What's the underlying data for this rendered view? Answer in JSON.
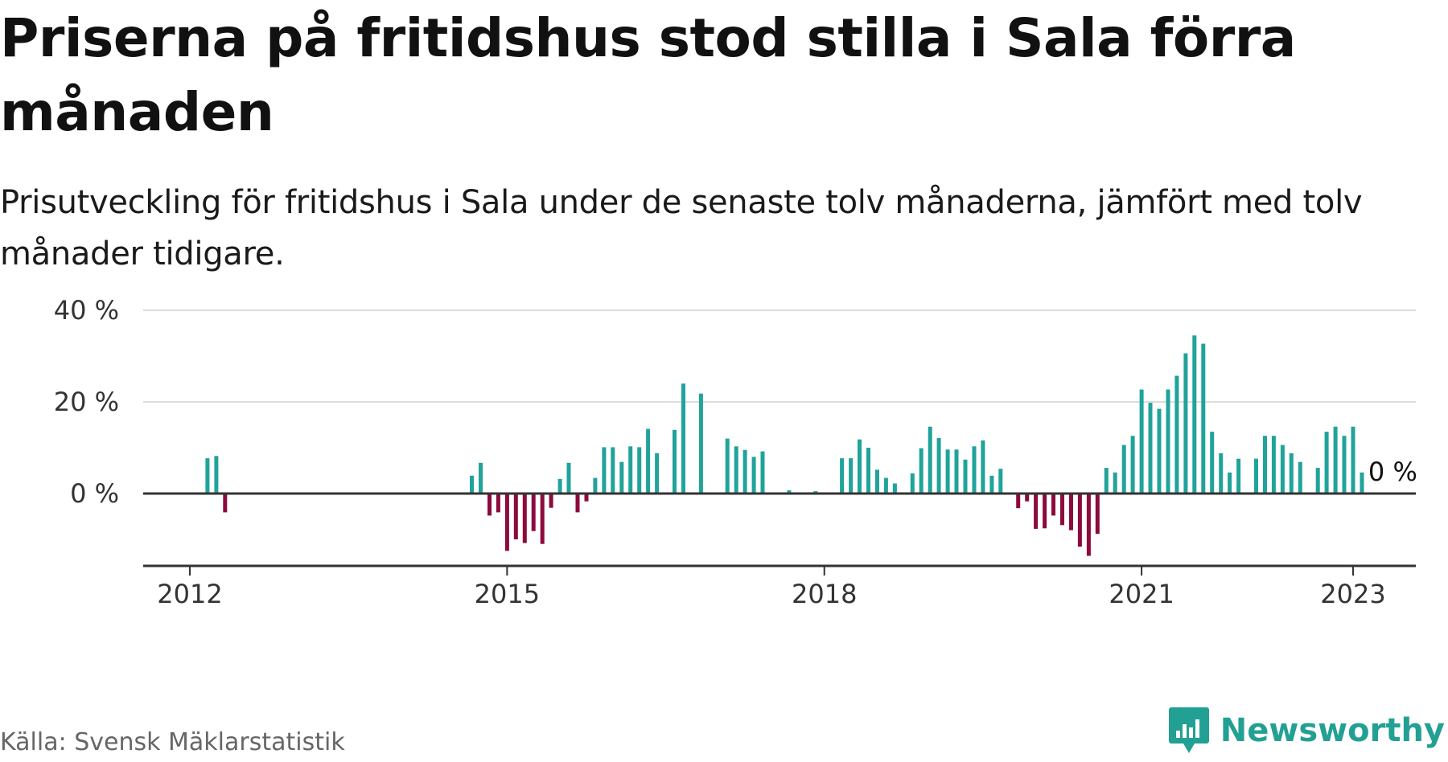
{
  "title": "Priserna på fritidshus stod stilla i Sala förra månaden",
  "subtitle": "Prisutveckling för fritidshus i Sala under de senaste tolv månaderna, jämfört med tolv månader tidigare.",
  "source": "Källa: Svensk Mäklarstatistik",
  "brand": {
    "name": "Newsworthy",
    "icon": "newsworthy-logo-icon"
  },
  "colors": {
    "positive": "#20a39a",
    "negative": "#8c0a3d",
    "grid": "#dddddd",
    "axis": "#333333",
    "brand": "#23a094"
  },
  "chart_data": {
    "type": "bar",
    "x_unit": "month",
    "xlim": [
      "2011-08",
      "2023-03"
    ],
    "ylim": [
      -16,
      40
    ],
    "yticks": [
      0,
      20,
      40
    ],
    "ytick_labels": [
      "0 %",
      "20 %",
      "40 %"
    ],
    "xticks": [
      "2012-01",
      "2015-01",
      "2018-01",
      "2021-01",
      "2023-01"
    ],
    "xtick_labels": [
      "2012",
      "2015",
      "2018",
      "2021",
      "2023"
    ],
    "grid": true,
    "series": [
      {
        "values": [
          [
            "2012-03",
            7.7
          ],
          [
            "2012-04",
            8.2
          ],
          [
            "2012-05",
            -4.1
          ],
          [
            "2014-09",
            3.9
          ],
          [
            "2014-10",
            6.7
          ],
          [
            "2014-11",
            -4.8
          ],
          [
            "2014-12",
            -4.1
          ],
          [
            "2015-01",
            -12.5
          ],
          [
            "2015-02",
            -10.0
          ],
          [
            "2015-03",
            -10.8
          ],
          [
            "2015-04",
            -8.2
          ],
          [
            "2015-05",
            -11.0
          ],
          [
            "2015-06",
            -3.1
          ],
          [
            "2015-07",
            3.2
          ],
          [
            "2015-08",
            6.7
          ],
          [
            "2015-09",
            -4.1
          ],
          [
            "2015-10",
            -1.7
          ],
          [
            "2015-11",
            3.4
          ],
          [
            "2015-12",
            10.1
          ],
          [
            "2016-01",
            10.1
          ],
          [
            "2016-02",
            6.9
          ],
          [
            "2016-03",
            10.3
          ],
          [
            "2016-04",
            10.1
          ],
          [
            "2016-05",
            14.1
          ],
          [
            "2016-06",
            8.8
          ],
          [
            "2016-08",
            13.9
          ],
          [
            "2016-09",
            24.0
          ],
          [
            "2016-11",
            21.8
          ],
          [
            "2017-02",
            12.0
          ],
          [
            "2017-03",
            10.3
          ],
          [
            "2017-04",
            9.5
          ],
          [
            "2017-05",
            8.0
          ],
          [
            "2017-06",
            9.2
          ],
          [
            "2017-09",
            0.7
          ],
          [
            "2017-12",
            0.5
          ],
          [
            "2018-03",
            7.7
          ],
          [
            "2018-04",
            7.7
          ],
          [
            "2018-05",
            11.8
          ],
          [
            "2018-06",
            10.0
          ],
          [
            "2018-07",
            5.2
          ],
          [
            "2018-08",
            3.4
          ],
          [
            "2018-09",
            2.2
          ],
          [
            "2018-11",
            4.4
          ],
          [
            "2018-12",
            9.9
          ],
          [
            "2019-01",
            14.6
          ],
          [
            "2019-02",
            12.1
          ],
          [
            "2019-03",
            9.6
          ],
          [
            "2019-04",
            9.6
          ],
          [
            "2019-05",
            7.4
          ],
          [
            "2019-06",
            10.3
          ],
          [
            "2019-07",
            11.6
          ],
          [
            "2019-08",
            3.9
          ],
          [
            "2019-09",
            5.4
          ],
          [
            "2019-11",
            -3.2
          ],
          [
            "2019-12",
            -1.7
          ],
          [
            "2020-01",
            -7.7
          ],
          [
            "2020-02",
            -7.6
          ],
          [
            "2020-03",
            -4.8
          ],
          [
            "2020-04",
            -6.9
          ],
          [
            "2020-05",
            -8.0
          ],
          [
            "2020-06",
            -11.6
          ],
          [
            "2020-07",
            -13.6
          ],
          [
            "2020-08",
            -8.8
          ],
          [
            "2020-09",
            5.6
          ],
          [
            "2020-10",
            4.6
          ],
          [
            "2020-11",
            10.6
          ],
          [
            "2020-12",
            12.6
          ],
          [
            "2021-01",
            22.7
          ],
          [
            "2021-02",
            19.8
          ],
          [
            "2021-03",
            18.5
          ],
          [
            "2021-04",
            22.7
          ],
          [
            "2021-05",
            25.7
          ],
          [
            "2021-06",
            30.6
          ],
          [
            "2021-07",
            34.5
          ],
          [
            "2021-08",
            32.7
          ],
          [
            "2021-09",
            13.5
          ],
          [
            "2021-10",
            8.8
          ],
          [
            "2021-11",
            4.6
          ],
          [
            "2021-12",
            7.6
          ],
          [
            "2022-02",
            7.6
          ],
          [
            "2022-03",
            12.6
          ],
          [
            "2022-04",
            12.6
          ],
          [
            "2022-05",
            10.6
          ],
          [
            "2022-06",
            8.8
          ],
          [
            "2022-07",
            6.9
          ],
          [
            "2022-09",
            5.6
          ],
          [
            "2022-10",
            13.5
          ],
          [
            "2022-11",
            14.6
          ],
          [
            "2022-12",
            12.6
          ],
          [
            "2023-01",
            14.6
          ],
          [
            "2023-02",
            4.6
          ],
          [
            "2023-03",
            0.0
          ]
        ]
      }
    ],
    "annotations": [
      {
        "x": "2023-03",
        "y": 0,
        "text": "0 %"
      }
    ]
  }
}
